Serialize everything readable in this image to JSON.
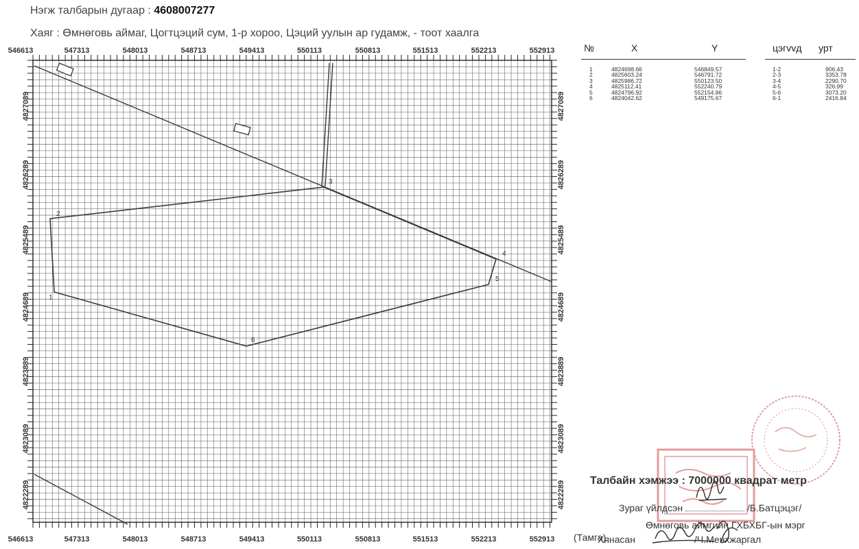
{
  "header": {
    "parcel_label": "Нэгж талбарын дугаар :",
    "parcel_number": "4608007277",
    "address": "Хаяг : Өмнөговь аймаг, Цогтцэций сум, 1-р хороо, Цэций уулын ар гудамж, - тоот хаалга"
  },
  "map": {
    "x_ticks": [
      "546613",
      "547313",
      "548013",
      "548713",
      "549413",
      "550113",
      "550813",
      "551513",
      "552213",
      "552913"
    ],
    "y_ticks": [
      "4827089",
      "4826289",
      "4825489",
      "4824689",
      "4823889",
      "4823089",
      "4822289"
    ],
    "point_labels": [
      "1",
      "2",
      "3",
      "4",
      "5",
      "6"
    ],
    "line_color": "#3a3a3a",
    "grid_color": "#5a5a5a"
  },
  "coordinates": {
    "headers": {
      "no": "№",
      "x": "X",
      "y": "Y",
      "segment": "цэгvvд",
      "length": "урт"
    },
    "rows": [
      {
        "no": "1",
        "x": "4824698.66",
        "y": "546849.57",
        "seg": "1-2",
        "len": "906.43"
      },
      {
        "no": "2",
        "x": "4825603.24",
        "y": "546791.72",
        "seg": "2-3",
        "len": "3353.78"
      },
      {
        "no": "3",
        "x": "4825986.72",
        "y": "550123.50",
        "seg": "3-4",
        "len": "2290.70"
      },
      {
        "no": "4",
        "x": "4825112.41",
        "y": "552240.79",
        "seg": "4-5",
        "len": "326.99"
      },
      {
        "no": "5",
        "x": "4824796.92",
        "y": "552154.86",
        "seg": "5-6",
        "len": "3073.20"
      },
      {
        "no": "6",
        "x": "4824042.62",
        "y": "549175.67",
        "seg": "6-1",
        "len": "2416.84"
      }
    ]
  },
  "footer": {
    "area": "Талбайн хэмжээ : 7000000 квадрат метр",
    "made_by_label": "Зураг үйлдсэн",
    "made_by_name": "/Б.Батцэцэг/",
    "office": "Өмнөговь аймгийн ГХБХБГ-ын мэрг",
    "stamp_label": "(Тамга)",
    "approved_label": "Хянасан",
    "approver_name": "/Ч.Менхжаргал"
  },
  "stamp_color": "#d04a4a"
}
